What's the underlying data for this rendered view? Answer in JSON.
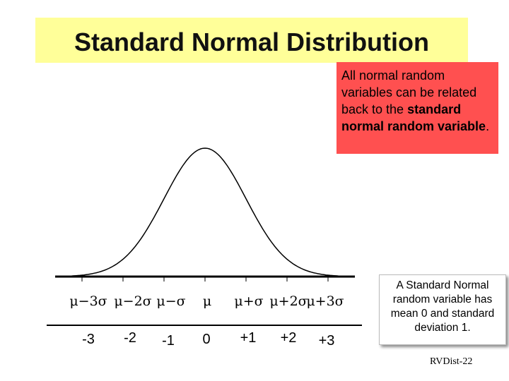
{
  "title": "Standard Normal Distribution",
  "callout_red": {
    "part1": "All normal random variables can be related back to the ",
    "bold": "standard normal random variable",
    "part2": "."
  },
  "callout_grey": "A Standard Normal random variable has mean 0 and standard deviation 1.",
  "footer": "RVDist-22",
  "mu_labels": [
    "μ−3σ",
    "μ−2σ",
    "μ−σ",
    "μ",
    "μ+σ",
    "μ+2σ",
    "μ+3σ"
  ],
  "z_labels": [
    "-3",
    "-2",
    "-1",
    "0",
    "+1",
    "+2",
    "+3"
  ],
  "colors": {
    "title_bg": "#ffff99",
    "callout_red_bg": "#ff5050"
  },
  "curve": {
    "type": "normal-density",
    "mean": 0,
    "sd": 1,
    "x_range": [
      -3.5,
      3.5
    ]
  }
}
